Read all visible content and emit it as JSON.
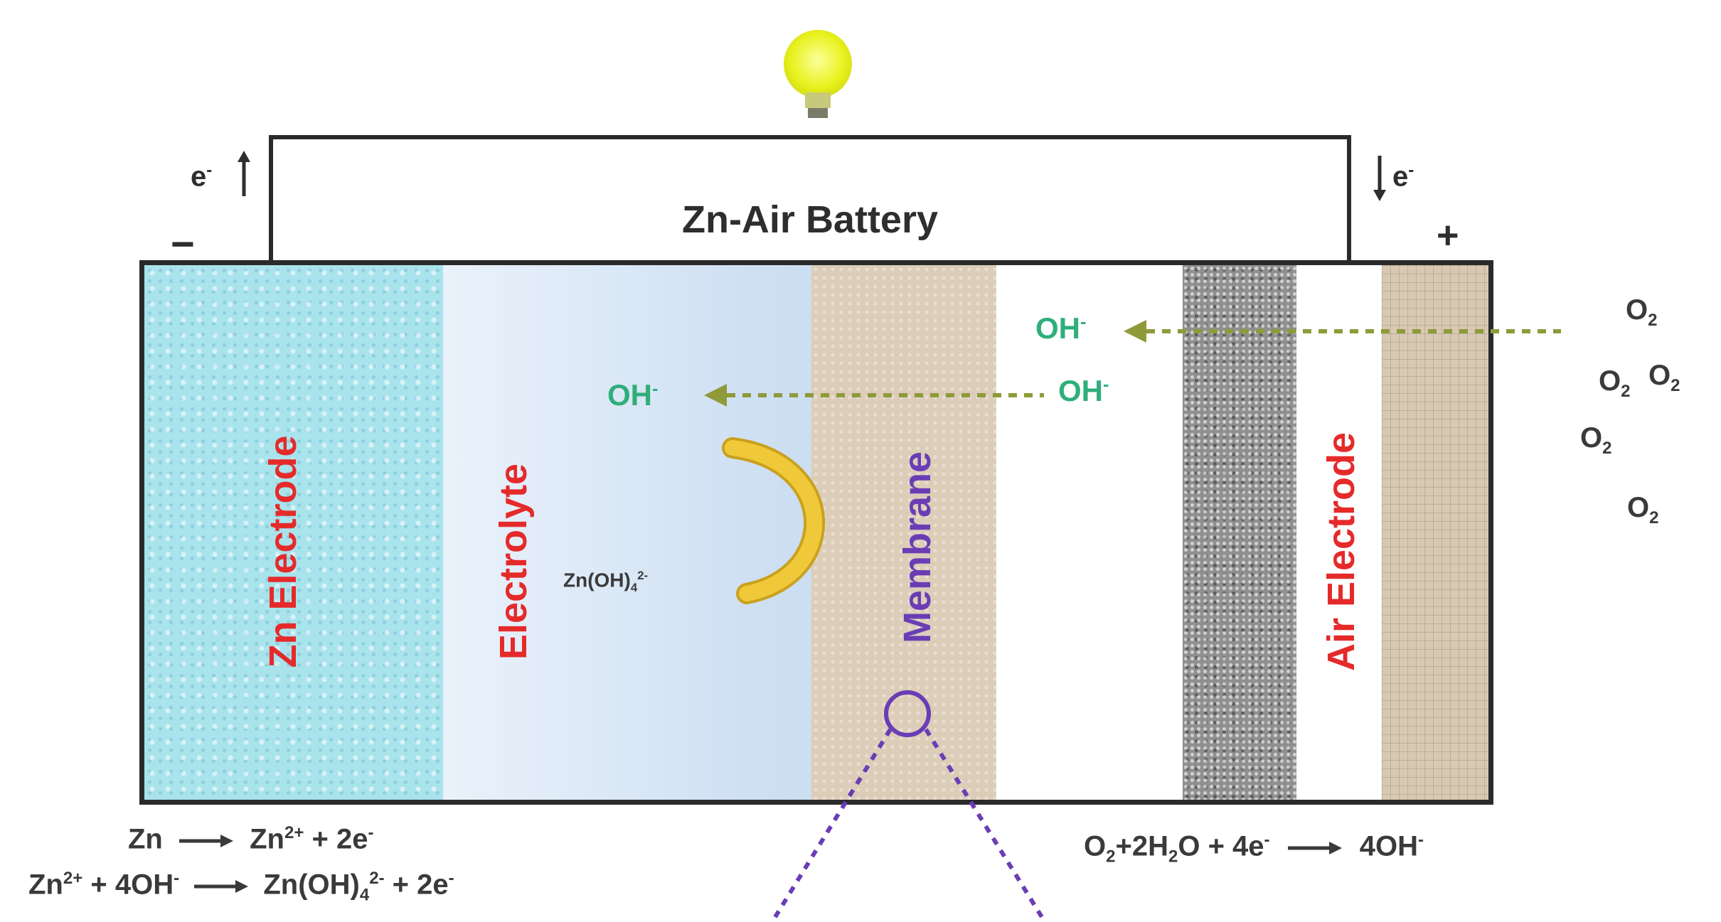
{
  "title": "Zn-Air Battery",
  "terminals": {
    "negative": "−",
    "positive": "+"
  },
  "electron_left": {
    "text": "e",
    "sup": "-"
  },
  "electron_right": {
    "text": "e",
    "sup": "-"
  },
  "layers": {
    "zn_electrode": "Zn Electrode",
    "electrolyte": "Electrolyte",
    "membrane": "Membrane",
    "air_electrode": "Air Electrode"
  },
  "ions": {
    "oh_left": {
      "text": "OH",
      "sup": "-"
    },
    "oh_mid": {
      "text": "OH",
      "sup": "-"
    },
    "oh_right": {
      "text": "OH",
      "sup": "-"
    },
    "zincate": {
      "text": "Zn(OH)",
      "sub": "4",
      "sup": "2-"
    }
  },
  "oxygen": [
    {
      "text": "O",
      "sub": "2"
    },
    {
      "text": "O",
      "sub": "2"
    },
    {
      "text": "O",
      "sub": "2"
    },
    {
      "text": "O",
      "sub": "2"
    },
    {
      "text": "O",
      "sub": "2"
    }
  ],
  "equations": {
    "anode_1": {
      "left": "Zn",
      "right": "Zn",
      "right_sup": "2+",
      "tail": " + 2e",
      "tail_sup": "-"
    },
    "anode_2": {
      "left": "Zn",
      "left_sup": "2+",
      "mid": " + 4OH",
      "mid_sup": "-",
      "right": "Zn(OH)",
      "right_sub": "4",
      "right_sup": "2-",
      "tail": " + 2e",
      "tail_sup": "-"
    },
    "cathode": {
      "p1": "O",
      "p1_sub": "2",
      "p2": "+2H",
      "p2_sub": "2",
      "p3": "O + 4e",
      "p3_sup": "-",
      "right": "4OH",
      "right_sup": "-"
    }
  },
  "colors": {
    "zn": "#a9e3ec",
    "electrolyte": "#cfe0f3",
    "membrane": "#dccdb9",
    "gdl": "#8f8f8f",
    "air": "#d8c9b2",
    "label_red": "#e52a2a",
    "membrane_label": "#6a3db5",
    "oh_green": "#2fae7a",
    "arrow_olive": "#8f9a3a",
    "zincate_arc": "#e8b92a"
  }
}
